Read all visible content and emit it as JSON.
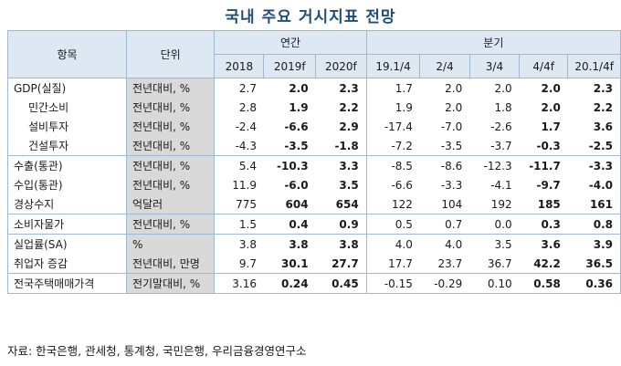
{
  "title": "국내 주요 거시지표 전망",
  "header": {
    "item": "항목",
    "unit": "단위",
    "annual": "연간",
    "quarterly": "분기",
    "annual_cols": [
      "2018",
      "2019f",
      "2020f"
    ],
    "quarter_cols": [
      "19.1/4",
      "2/4",
      "3/4",
      "4/4f",
      "20.1/4f"
    ]
  },
  "rows": [
    {
      "label": "GDP(실질)",
      "unit": "전년대비, %",
      "values": [
        "2.7",
        "2.0",
        "2.3",
        "1.7",
        "2.0",
        "2.0",
        "2.0",
        "2.3"
      ]
    },
    {
      "label": "민간소비",
      "unit": "전년대비, %",
      "values": [
        "2.8",
        "1.9",
        "2.2",
        "1.9",
        "2.0",
        "1.8",
        "2.0",
        "2.2"
      ]
    },
    {
      "label": "설비투자",
      "unit": "전년대비, %",
      "values": [
        "-2.4",
        "-6.6",
        "2.9",
        "-17.4",
        "-7.0",
        "-2.6",
        "1.7",
        "3.6"
      ]
    },
    {
      "label": "건설투자",
      "unit": "전년대비, %",
      "values": [
        "-4.3",
        "-3.5",
        "-1.8",
        "-7.2",
        "-3.5",
        "-3.7",
        "-0.3",
        "-2.5"
      ]
    },
    {
      "label": "수출(통관)",
      "unit": "전년대비, %",
      "values": [
        "5.4",
        "-10.3",
        "3.3",
        "-8.5",
        "-8.6",
        "-12.3",
        "-11.7",
        "-3.3"
      ]
    },
    {
      "label": "수입(통관)",
      "unit": "전년대비, %",
      "values": [
        "11.9",
        "-6.0",
        "3.5",
        "-6.6",
        "-3.3",
        "-4.1",
        "-9.7",
        "-4.0"
      ]
    },
    {
      "label": "경상수지",
      "unit": "억달러",
      "values": [
        "775",
        "604",
        "654",
        "122",
        "104",
        "192",
        "185",
        "161"
      ]
    },
    {
      "label": "소비자물가",
      "unit": "전년대비, %",
      "values": [
        "1.5",
        "0.4",
        "0.9",
        "0.5",
        "0.7",
        "0.0",
        "0.3",
        "0.8"
      ]
    },
    {
      "label": "실업률(SA)",
      "unit": "%",
      "values": [
        "3.8",
        "3.8",
        "3.8",
        "4.0",
        "4.0",
        "3.5",
        "3.6",
        "3.9"
      ]
    },
    {
      "label": "취업자 증감",
      "unit": "전년대비, 만명",
      "values": [
        "9.7",
        "30.1",
        "27.7",
        "17.7",
        "23.7",
        "36.7",
        "42.2",
        "36.5"
      ]
    },
    {
      "label": "전국주택매매가격",
      "unit": "전기말대비, %",
      "values": [
        "3.16",
        "0.24",
        "0.45",
        "-0.15",
        "-0.29",
        "0.10",
        "0.58",
        "0.36"
      ]
    }
  ],
  "source": "자료: 한국은행, 관세청, 통계청, 국민은행, 우리금융경영연구소"
}
